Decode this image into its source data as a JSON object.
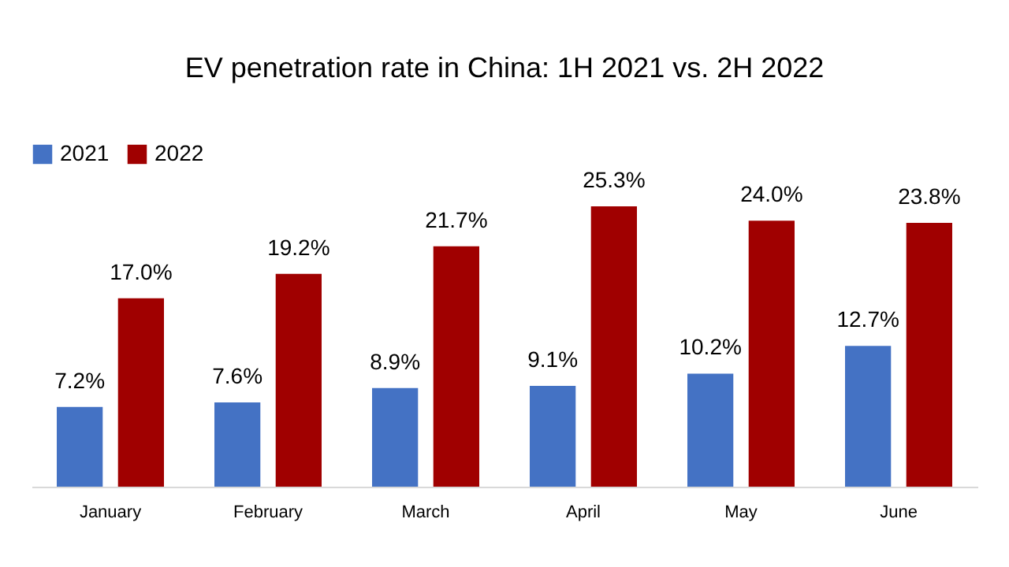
{
  "chart_data": {
    "type": "bar",
    "title": "EV penetration rate in China: 1H 2021 vs. 2H 2022",
    "categories": [
      "January",
      "February",
      "March",
      "April",
      "May",
      "June"
    ],
    "series": [
      {
        "name": "2021",
        "color": "#4472c4",
        "values": [
          7.2,
          7.6,
          8.9,
          9.1,
          10.2,
          12.7
        ],
        "value_labels": [
          "7.2%",
          "7.6%",
          "8.9%",
          "9.1%",
          "10.2%",
          "12.7%"
        ]
      },
      {
        "name": "2022",
        "color": "#a00000",
        "values": [
          17.0,
          19.2,
          21.7,
          25.3,
          24.0,
          23.8
        ],
        "value_labels": [
          "17.0%",
          "19.2%",
          "21.7%",
          "25.3%",
          "24.0%",
          "23.8%"
        ]
      }
    ],
    "legend": "top left",
    "grid": false,
    "tick_labels": "x"
  }
}
